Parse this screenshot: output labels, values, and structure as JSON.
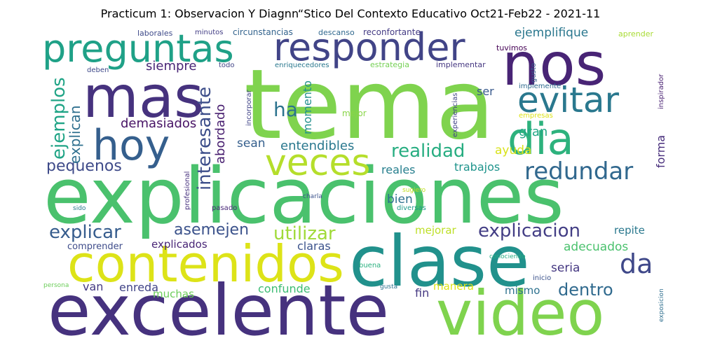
{
  "title": "Practicum 1: Observacion Y Diagnn“Stico Del Contexto Educativo Oct21-Feb22 - 2021-11",
  "words": [
    {
      "text": "tema",
      "color": "#7fd34e"
    },
    {
      "text": "explicaciones",
      "color": "#4ac16d"
    },
    {
      "text": "excelente",
      "color": "#46327e"
    },
    {
      "text": "clase",
      "color": "#21918c"
    },
    {
      "text": "video",
      "color": "#7fd34e"
    },
    {
      "text": "contenidos",
      "color": "#dde318"
    },
    {
      "text": "nos",
      "color": "#482475"
    },
    {
      "text": "mas",
      "color": "#46327e"
    },
    {
      "text": "preguntas",
      "color": "#1fa187"
    },
    {
      "text": "responder",
      "color": "#414487"
    },
    {
      "text": "hoy",
      "color": "#355f8d"
    },
    {
      "text": "dia",
      "color": "#2db27d"
    },
    {
      "text": "evitar",
      "color": "#2a788e"
    },
    {
      "text": "veces",
      "color": "#b5de2b"
    },
    {
      "text": "redundar",
      "color": "#31688e"
    },
    {
      "text": "realidad",
      "color": "#27ad81"
    },
    {
      "text": "explicar",
      "color": "#365c8d"
    },
    {
      "text": "explicacion",
      "color": "#433e85"
    },
    {
      "text": "utilizar",
      "color": "#a0da39"
    },
    {
      "text": "asemejen",
      "color": "#3b528b"
    },
    {
      "text": "da",
      "color": "#3f4889"
    },
    {
      "text": "dentro",
      "color": "#306a8e"
    },
    {
      "text": "pequenos",
      "color": "#3e4a89"
    },
    {
      "text": "ejemplos",
      "color": "#20a486"
    },
    {
      "text": "explican",
      "color": "#2e6f8e"
    },
    {
      "text": "interesante",
      "color": "#3d4e8a"
    },
    {
      "text": "ha",
      "color": "#2c738e"
    },
    {
      "text": "demasiados",
      "color": "#471365"
    },
    {
      "text": "siempre",
      "color": "#482576"
    },
    {
      "text": "abordado",
      "color": "#481f70"
    },
    {
      "text": "momento",
      "color": "#218f8d"
    },
    {
      "text": "sean",
      "color": "#355f8d"
    },
    {
      "text": "entendibles",
      "color": "#2a788e"
    },
    {
      "text": "ayuda",
      "color": "#d8e219"
    },
    {
      "text": "trabajos",
      "color": "#1f948c"
    },
    {
      "text": "reales",
      "color": "#277f8e"
    },
    {
      "text": "bien",
      "color": "#2d708e"
    },
    {
      "text": "gran",
      "color": "#22a785"
    },
    {
      "text": "forma",
      "color": "#472d7b"
    },
    {
      "text": "ejemplifique",
      "color": "#2a778e"
    },
    {
      "text": "ser",
      "color": "#38598c"
    },
    {
      "text": "adecuados",
      "color": "#4ac16d"
    },
    {
      "text": "seria",
      "color": "#453882"
    },
    {
      "text": "repite",
      "color": "#2a788e"
    },
    {
      "text": "claras",
      "color": "#3b528b"
    },
    {
      "text": "confunde",
      "color": "#3dbc74"
    },
    {
      "text": "mejorar",
      "color": "#bddf26"
    },
    {
      "text": "comprender",
      "color": "#3e4c8a"
    },
    {
      "text": "explicados",
      "color": "#482576"
    },
    {
      "text": "van",
      "color": "#443983"
    },
    {
      "text": "enreda",
      "color": "#414487"
    },
    {
      "text": "muchas",
      "color": "#6ccd5a"
    },
    {
      "text": "fin",
      "color": "#453882"
    },
    {
      "text": "manera",
      "color": "#dde318"
    },
    {
      "text": "mismo",
      "color": "#2d718e"
    },
    {
      "text": "laborales",
      "color": "#3e4a89"
    },
    {
      "text": "minutos",
      "color": "#433e85"
    },
    {
      "text": "circunstancias",
      "color": "#33638d"
    },
    {
      "text": "descanso",
      "color": "#31688e"
    },
    {
      "text": "reconfortante",
      "color": "#443b84"
    },
    {
      "text": "aprender",
      "color": "#a8db34"
    },
    {
      "text": "tuvimos",
      "color": "#440154"
    },
    {
      "text": "deben",
      "color": "#3e4989"
    },
    {
      "text": "todo",
      "color": "#414487"
    },
    {
      "text": "enriquecedores",
      "color": "#2a788e"
    },
    {
      "text": "estrategia",
      "color": "#75d054"
    },
    {
      "text": "implementar",
      "color": "#453781"
    },
    {
      "text": "gusto",
      "color": "#355e8d"
    },
    {
      "text": "inspirador",
      "color": "#482071"
    },
    {
      "text": "implemente",
      "color": "#2f6b8e"
    },
    {
      "text": "experiencias",
      "color": "#414487"
    },
    {
      "text": "incorporar",
      "color": "#404387"
    },
    {
      "text": "mejor",
      "color": "#89d548"
    },
    {
      "text": "empresas",
      "color": "#dde318"
    },
    {
      "text": "profesional",
      "color": "#46307e"
    },
    {
      "text": "sugiero",
      "color": "#c2df23"
    },
    {
      "text": "charla",
      "color": "#3b528b"
    },
    {
      "text": "diversas",
      "color": "#1f9a8a"
    },
    {
      "text": "sido",
      "color": "#2a788e"
    },
    {
      "text": "pasado",
      "color": "#482878"
    },
    {
      "text": "conociendo",
      "color": "#25ac82"
    },
    {
      "text": "buena",
      "color": "#2ab07f"
    },
    {
      "text": "inicio",
      "color": "#3b528b"
    },
    {
      "text": "gusta",
      "color": "#2c728e"
    },
    {
      "text": "persona",
      "color": "#6ccd5a"
    },
    {
      "text": "exposicion",
      "color": "#2e6e8e"
    }
  ]
}
